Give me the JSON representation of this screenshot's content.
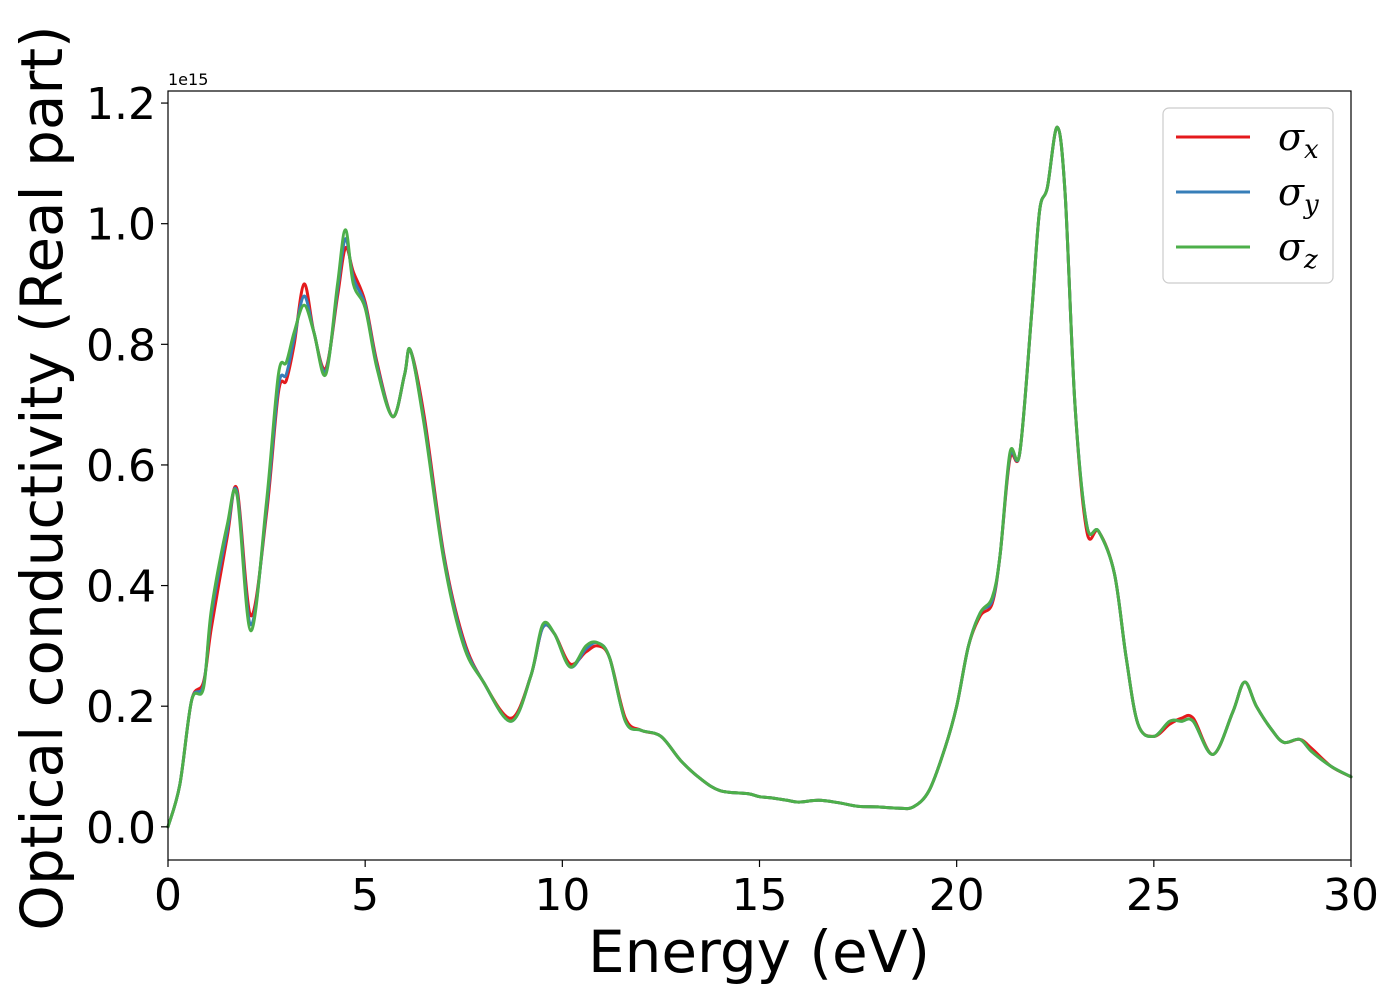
{
  "chart_data": {
    "type": "line",
    "title": "",
    "xlabel": "Energy (eV)",
    "ylabel": "Optical conductivity (Real part)",
    "y_offset_label": "1e15",
    "xlim": [
      0,
      30
    ],
    "ylim": [
      -0.055,
      1.22
    ],
    "xticks": [
      0,
      5,
      10,
      15,
      20,
      25,
      30
    ],
    "xtick_labels": [
      "0",
      "5",
      "10",
      "15",
      "20",
      "25",
      "30"
    ],
    "yticks": [
      0.0,
      0.2,
      0.4,
      0.6,
      0.8,
      1.0,
      1.2
    ],
    "ytick_labels": [
      "0.0",
      "0.2",
      "0.4",
      "0.6",
      "0.8",
      "1.0",
      "1.2"
    ],
    "grid": false,
    "legend_position": "top-right",
    "series": [
      {
        "name": "σx",
        "symbol": "σ",
        "subscript": "x",
        "color": "#e41a1c",
        "x": [
          0,
          0.3,
          0.6,
          0.9,
          1.1,
          1.5,
          1.75,
          2.1,
          2.5,
          2.8,
          3.0,
          3.2,
          3.45,
          3.7,
          4.0,
          4.3,
          4.5,
          4.7,
          5.0,
          5.3,
          5.7,
          6.0,
          6.15,
          6.5,
          7.0,
          7.5,
          8.0,
          8.7,
          9.2,
          9.5,
          9.8,
          10.2,
          10.6,
          10.9,
          11.2,
          11.6,
          12.0,
          12.5,
          13.0,
          13.5,
          14.0,
          14.7,
          15.0,
          15.3,
          15.7,
          16.0,
          16.5,
          17.0,
          17.5,
          18.0,
          18.5,
          18.9,
          19.3,
          19.7,
          20.0,
          20.3,
          20.6,
          20.9,
          21.1,
          21.35,
          21.6,
          21.9,
          22.1,
          22.3,
          22.55,
          22.75,
          23.0,
          23.3,
          23.6,
          24.0,
          24.3,
          24.6,
          25.0,
          25.4,
          25.7,
          26.0,
          26.5,
          27.0,
          27.3,
          27.6,
          28.0,
          28.3,
          28.7,
          29.0,
          29.5,
          30.0
        ],
        "y": [
          0.0,
          0.07,
          0.21,
          0.24,
          0.33,
          0.48,
          0.56,
          0.35,
          0.52,
          0.72,
          0.74,
          0.8,
          0.9,
          0.82,
          0.76,
          0.88,
          0.96,
          0.92,
          0.87,
          0.77,
          0.68,
          0.75,
          0.79,
          0.68,
          0.45,
          0.31,
          0.24,
          0.18,
          0.25,
          0.33,
          0.32,
          0.27,
          0.29,
          0.3,
          0.28,
          0.18,
          0.16,
          0.15,
          0.11,
          0.08,
          0.06,
          0.055,
          0.05,
          0.048,
          0.044,
          0.041,
          0.044,
          0.04,
          0.034,
          0.033,
          0.031,
          0.033,
          0.06,
          0.13,
          0.2,
          0.3,
          0.35,
          0.37,
          0.45,
          0.61,
          0.62,
          0.85,
          1.02,
          1.06,
          1.16,
          1.05,
          0.7,
          0.49,
          0.49,
          0.42,
          0.28,
          0.17,
          0.15,
          0.17,
          0.18,
          0.18,
          0.12,
          0.19,
          0.24,
          0.2,
          0.16,
          0.14,
          0.145,
          0.13,
          0.1,
          0.083
        ]
      },
      {
        "name": "σy",
        "symbol": "σ",
        "subscript": "y",
        "color": "#377eb8",
        "x": [
          0,
          0.3,
          0.6,
          0.9,
          1.1,
          1.5,
          1.75,
          2.1,
          2.5,
          2.8,
          3.0,
          3.2,
          3.45,
          3.7,
          4.0,
          4.3,
          4.5,
          4.7,
          5.0,
          5.3,
          5.7,
          6.0,
          6.15,
          6.5,
          7.0,
          7.5,
          8.0,
          8.7,
          9.2,
          9.5,
          9.8,
          10.2,
          10.6,
          10.9,
          11.2,
          11.6,
          12.0,
          12.5,
          13.0,
          13.5,
          14.0,
          14.7,
          15.0,
          15.3,
          15.7,
          16.0,
          16.5,
          17.0,
          17.5,
          18.0,
          18.5,
          18.9,
          19.3,
          19.7,
          20.0,
          20.3,
          20.6,
          20.9,
          21.1,
          21.35,
          21.6,
          21.9,
          22.1,
          22.3,
          22.55,
          22.75,
          23.0,
          23.3,
          23.6,
          24.0,
          24.3,
          24.6,
          25.0,
          25.4,
          25.7,
          26.0,
          26.5,
          27.0,
          27.3,
          27.6,
          28.0,
          28.3,
          28.7,
          29.0,
          29.5,
          30.0
        ],
        "y": [
          0.0,
          0.07,
          0.21,
          0.235,
          0.35,
          0.49,
          0.555,
          0.335,
          0.53,
          0.73,
          0.75,
          0.81,
          0.88,
          0.82,
          0.755,
          0.89,
          0.975,
          0.91,
          0.865,
          0.765,
          0.68,
          0.75,
          0.79,
          0.67,
          0.445,
          0.305,
          0.24,
          0.175,
          0.25,
          0.33,
          0.32,
          0.265,
          0.295,
          0.305,
          0.28,
          0.175,
          0.16,
          0.15,
          0.11,
          0.08,
          0.06,
          0.055,
          0.05,
          0.048,
          0.044,
          0.041,
          0.044,
          0.04,
          0.034,
          0.033,
          0.031,
          0.033,
          0.06,
          0.13,
          0.2,
          0.3,
          0.355,
          0.375,
          0.45,
          0.615,
          0.62,
          0.85,
          1.02,
          1.06,
          1.16,
          1.05,
          0.7,
          0.5,
          0.49,
          0.42,
          0.28,
          0.17,
          0.15,
          0.175,
          0.175,
          0.175,
          0.12,
          0.19,
          0.24,
          0.2,
          0.16,
          0.14,
          0.145,
          0.125,
          0.1,
          0.083
        ]
      },
      {
        "name": "σz",
        "symbol": "σ",
        "subscript": "z",
        "color": "#4daf4a",
        "x": [
          0,
          0.3,
          0.6,
          0.9,
          1.1,
          1.5,
          1.75,
          2.1,
          2.5,
          2.8,
          3.0,
          3.2,
          3.45,
          3.7,
          4.0,
          4.3,
          4.5,
          4.7,
          5.0,
          5.3,
          5.7,
          6.0,
          6.15,
          6.5,
          7.0,
          7.5,
          8.0,
          8.7,
          9.2,
          9.5,
          9.8,
          10.2,
          10.6,
          10.9,
          11.2,
          11.6,
          12.0,
          12.5,
          13.0,
          13.5,
          14.0,
          14.7,
          15.0,
          15.3,
          15.7,
          16.0,
          16.5,
          17.0,
          17.5,
          18.0,
          18.5,
          18.9,
          19.3,
          19.7,
          20.0,
          20.3,
          20.6,
          20.9,
          21.1,
          21.35,
          21.6,
          21.9,
          22.1,
          22.3,
          22.55,
          22.75,
          23.0,
          23.3,
          23.6,
          24.0,
          24.3,
          24.6,
          25.0,
          25.4,
          25.7,
          26.0,
          26.5,
          27.0,
          27.3,
          27.6,
          28.0,
          28.3,
          28.7,
          29.0,
          29.5,
          30.0
        ],
        "y": [
          0.0,
          0.07,
          0.21,
          0.23,
          0.36,
          0.5,
          0.55,
          0.325,
          0.54,
          0.75,
          0.77,
          0.82,
          0.865,
          0.82,
          0.75,
          0.9,
          0.99,
          0.9,
          0.86,
          0.76,
          0.68,
          0.75,
          0.79,
          0.665,
          0.44,
          0.3,
          0.24,
          0.175,
          0.25,
          0.335,
          0.32,
          0.265,
          0.3,
          0.305,
          0.28,
          0.175,
          0.16,
          0.15,
          0.11,
          0.08,
          0.06,
          0.055,
          0.05,
          0.048,
          0.044,
          0.041,
          0.044,
          0.04,
          0.034,
          0.033,
          0.031,
          0.033,
          0.06,
          0.13,
          0.2,
          0.3,
          0.355,
          0.38,
          0.45,
          0.62,
          0.62,
          0.85,
          1.02,
          1.06,
          1.16,
          1.05,
          0.7,
          0.5,
          0.49,
          0.42,
          0.28,
          0.17,
          0.15,
          0.175,
          0.175,
          0.175,
          0.12,
          0.19,
          0.24,
          0.2,
          0.16,
          0.14,
          0.145,
          0.125,
          0.1,
          0.083
        ]
      }
    ]
  }
}
